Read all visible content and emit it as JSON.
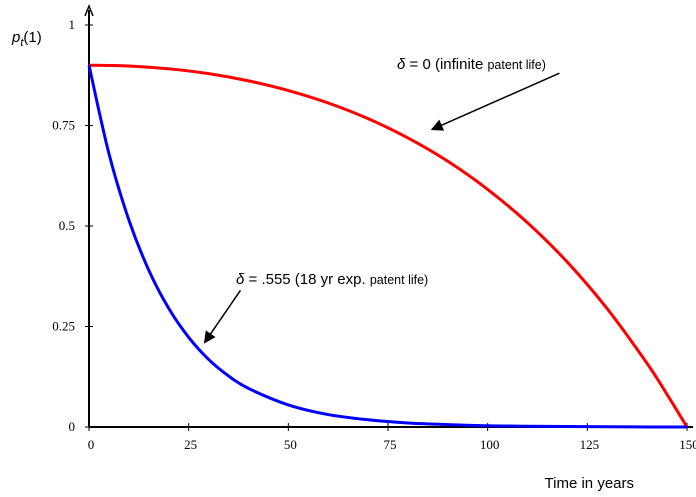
{
  "chart_data": {
    "type": "line",
    "x_axis": {
      "label": "Time in years",
      "range": [
        0,
        150
      ],
      "ticks": [
        0,
        25,
        50,
        75,
        100,
        125,
        150
      ]
    },
    "y_axis": {
      "label_main": "p",
      "label_sub": "t",
      "label_tail": "(1)",
      "range": [
        0,
        1
      ],
      "ticks": [
        0,
        0.25,
        0.5,
        0.75,
        1
      ],
      "tick_labels": [
        "0",
        "0.25",
        "0.5",
        "0.75",
        "1"
      ]
    },
    "grid": false,
    "series": [
      {
        "color": "#ff0000",
        "x": [
          0,
          10,
          20,
          30,
          40,
          50,
          60,
          70,
          80,
          90,
          100,
          110,
          120,
          130,
          140,
          145,
          150
        ],
        "y": [
          0.9,
          0.898,
          0.891,
          0.879,
          0.861,
          0.837,
          0.806,
          0.767,
          0.719,
          0.661,
          0.591,
          0.508,
          0.41,
          0.294,
          0.158,
          0.081,
          0.0
        ]
      },
      {
        "color": "#0000ff",
        "x": [
          0,
          5,
          10,
          15,
          20,
          25,
          30,
          35,
          40,
          50,
          60,
          70,
          80,
          90,
          100,
          110,
          125,
          140,
          150
        ],
        "y": [
          0.9,
          0.68,
          0.515,
          0.39,
          0.295,
          0.223,
          0.168,
          0.127,
          0.096,
          0.055,
          0.031,
          0.018,
          0.01,
          0.006,
          0.003,
          0.002,
          0.001,
          0.0,
          0.0
        ]
      }
    ],
    "annotations": [
      {
        "symbol": "δ",
        "value_text": " = 0 (infinite ",
        "small_text": "patent life)",
        "arrow_from": [
          118,
          0.88
        ],
        "arrow_to": [
          86,
          0.74
        ]
      },
      {
        "symbol": "δ",
        "value_text": " = .555 (18 yr exp. ",
        "small_text": "patent life)",
        "arrow_from": [
          38,
          0.34
        ],
        "arrow_to": [
          29,
          0.21
        ]
      }
    ]
  }
}
